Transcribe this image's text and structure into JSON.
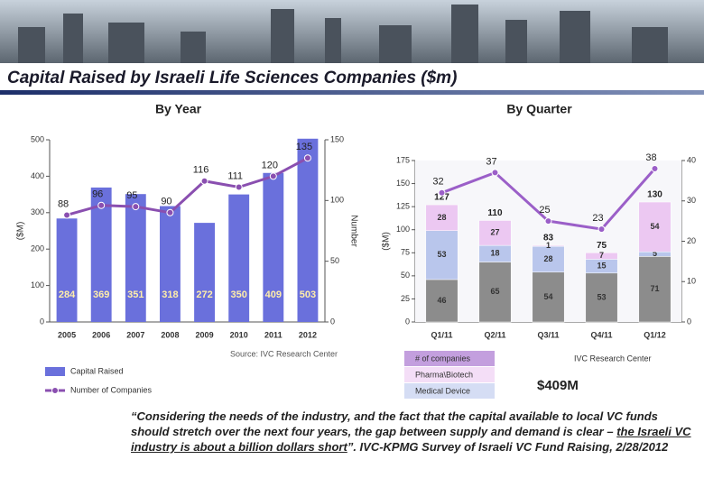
{
  "slide_title": "Capital Raised by Israeli Life Sciences Companies ($m)",
  "highlight": "$409M",
  "quote": {
    "text_before": "“Considering the needs of the industry, and the fact that the capital available to local VC funds should stretch over the next four years, the gap between supply and demand is clear – ",
    "text_underlined": "the Israeli VC industry is about a billion dollars short",
    "text_after": "”.  IVC-KPMG Survey of Israeli VC Fund Raising, 2/28/2012"
  },
  "chart_data": [
    {
      "type": "bar",
      "title": "By Year",
      "y_label": "($M)",
      "y2_label": "Number",
      "source": "Source: IVC Research Center",
      "categories": [
        "2005",
        "2006",
        "2007",
        "2008",
        "2009",
        "2010",
        "2011",
        "2012"
      ],
      "series": [
        {
          "name": "Capital Raised",
          "color": "#6a70dc",
          "values": [
            284,
            369,
            351,
            318,
            272,
            350,
            409,
            503
          ]
        },
        {
          "name": "Number of Companies",
          "color": "#8a4fb0",
          "type": "line",
          "axis": "y2",
          "values": [
            88,
            96,
            95,
            90,
            116,
            111,
            120,
            135
          ]
        }
      ],
      "ylim": [
        0,
        500
      ],
      "yticks": [
        0,
        100,
        200,
        300,
        400,
        500
      ],
      "y2lim": [
        0,
        150
      ],
      "y2ticks": [
        0,
        50,
        100,
        150
      ]
    },
    {
      "type": "stacked_bar",
      "title": "By Quarter",
      "y_label": "($M)",
      "source": "IVC Research Center",
      "categories": [
        "Q1/11",
        "Q2/11",
        "Q3/11",
        "Q4/11",
        "Q1/12"
      ],
      "series": [
        {
          "color": "#8c8c8c",
          "values": [
            46,
            65,
            54,
            53,
            71
          ]
        },
        {
          "name": "Medical Device",
          "color": "#b9c6ec",
          "values": [
            53,
            18,
            28,
            15,
            5
          ]
        },
        {
          "name": "Pharma\\Biotech",
          "color": "#ecc8f2",
          "values": [
            28,
            27,
            1,
            7,
            54
          ]
        },
        {
          "name": "# of companies",
          "color": "#9b5fc8",
          "type": "line",
          "axis": "y2",
          "values": [
            32,
            37,
            25,
            23,
            38
          ]
        }
      ],
      "totals": [
        127,
        110,
        83,
        75,
        130
      ],
      "ylim": [
        0,
        175
      ],
      "yticks": [
        0,
        25,
        50,
        75,
        100,
        125,
        150,
        175
      ],
      "y2lim": [
        0,
        40
      ],
      "y2ticks": [
        0,
        10,
        20,
        30,
        40
      ]
    }
  ]
}
